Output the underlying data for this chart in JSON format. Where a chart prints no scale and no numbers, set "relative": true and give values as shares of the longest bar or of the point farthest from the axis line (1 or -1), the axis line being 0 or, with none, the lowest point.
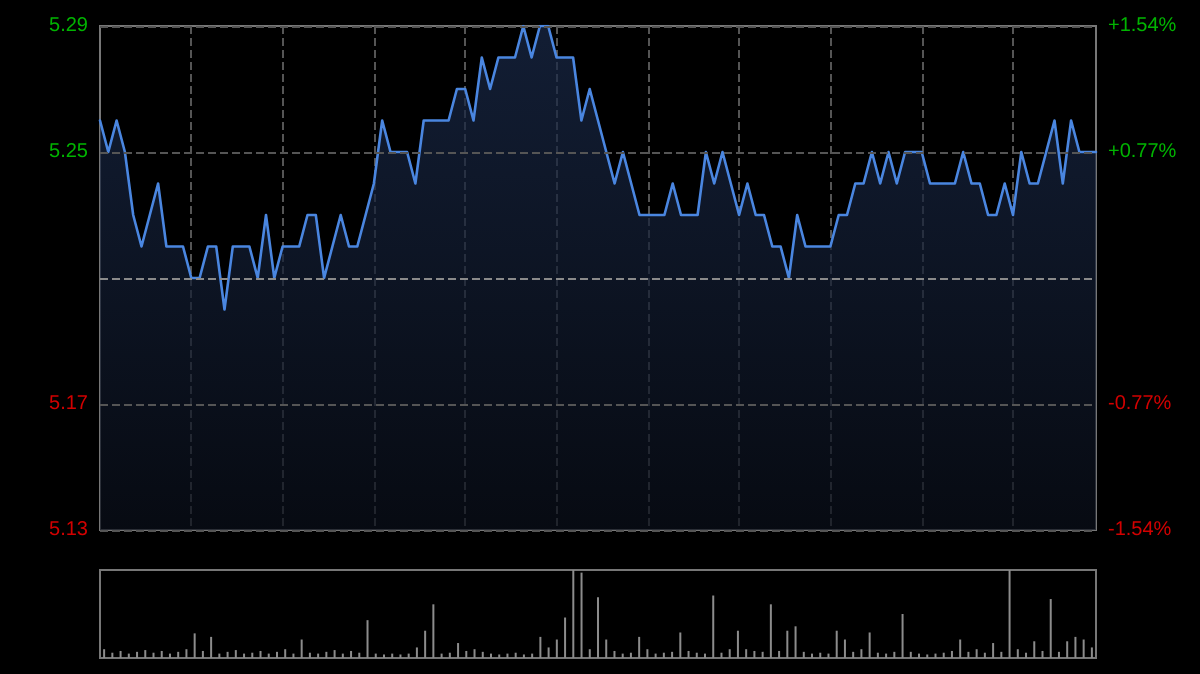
{
  "chart_data": [
    {
      "type": "area",
      "categories": [
        null,
        null,
        null,
        null,
        null,
        null,
        null,
        null,
        null,
        null,
        null,
        null,
        null,
        null,
        null,
        null,
        null,
        null,
        null,
        null,
        null,
        null,
        null,
        null,
        null,
        null,
        null,
        null,
        null,
        null,
        null,
        null,
        null,
        null,
        null,
        null,
        null,
        null,
        null,
        null,
        null,
        null,
        null,
        null,
        null,
        null,
        null,
        null,
        null,
        null,
        null,
        null,
        null,
        null,
        null,
        null,
        null,
        null,
        null,
        null,
        null,
        null,
        null,
        null,
        null,
        null,
        null,
        null,
        null,
        null,
        null,
        null,
        null,
        null,
        null,
        null,
        null,
        null,
        null,
        null,
        null,
        null,
        null,
        null,
        null,
        null,
        null,
        null,
        null,
        null,
        null,
        null,
        null,
        null,
        null,
        null,
        null,
        null,
        null,
        null,
        null,
        null,
        null,
        null,
        null,
        null,
        null,
        null,
        null,
        null,
        null,
        null,
        null,
        null,
        null,
        null,
        null,
        null,
        null,
        null,
        null
      ],
      "series": [
        {
          "color": "#4a86e0",
          "values": [
            5.26,
            5.25,
            5.26,
            5.25,
            5.23,
            5.22,
            5.23,
            5.24,
            5.22,
            5.22,
            5.22,
            5.21,
            5.21,
            5.22,
            5.22,
            5.2,
            5.22,
            5.22,
            5.22,
            5.21,
            5.23,
            5.21,
            5.22,
            5.22,
            5.22,
            5.23,
            5.23,
            5.21,
            5.22,
            5.23,
            5.22,
            5.22,
            5.23,
            5.24,
            5.26,
            5.25,
            5.25,
            5.25,
            5.24,
            5.26,
            5.26,
            5.26,
            5.26,
            5.27,
            5.27,
            5.26,
            5.28,
            5.27,
            5.28,
            5.28,
            5.28,
            5.29,
            5.28,
            5.29,
            5.29,
            5.28,
            5.28,
            5.28,
            5.26,
            5.27,
            5.26,
            5.25,
            5.24,
            5.25,
            5.24,
            5.23,
            5.23,
            5.23,
            5.23,
            5.24,
            5.23,
            5.23,
            5.23,
            5.25,
            5.24,
            5.25,
            5.24,
            5.23,
            5.24,
            5.23,
            5.23,
            5.22,
            5.22,
            5.21,
            5.23,
            5.22,
            5.22,
            5.22,
            5.22,
            5.23,
            5.23,
            5.24,
            5.24,
            5.25,
            5.24,
            5.25,
            5.24,
            5.25,
            5.25,
            5.25,
            5.24,
            5.24,
            5.24,
            5.24,
            5.25,
            5.24,
            5.24,
            5.23,
            5.23,
            5.24,
            5.23,
            5.25,
            5.24,
            5.24,
            5.25,
            5.26,
            5.24,
            5.26,
            5.25,
            5.25,
            5.25
          ]
        }
      ],
      "ylim": [
        5.13,
        5.29
      ],
      "yticks": [
        5.13,
        5.17,
        5.25,
        5.29
      ],
      "y2lim": [
        -1.54,
        1.54
      ],
      "y2ticks": [
        {
          "value": -1.54,
          "label": "-1.54%"
        },
        {
          "value": -0.77,
          "label": "-0.77%"
        },
        {
          "value": 0,
          "label": null
        },
        {
          "value": 0.77,
          "label": "+0.77%"
        },
        {
          "value": 1.54,
          "label": "+1.54%"
        }
      ],
      "ref_lines": [
        {
          "axis": "y",
          "value": 5.21,
          "line_style": "dashed",
          "color": "#8a8a8a"
        }
      ],
      "grid": true,
      "marker": "none",
      "line_style": "solid"
    },
    {
      "type": "bar",
      "relative": true,
      "categories": [
        null,
        null,
        null,
        null,
        null,
        null,
        null,
        null,
        null,
        null,
        null,
        null,
        null,
        null,
        null,
        null,
        null,
        null,
        null,
        null,
        null,
        null,
        null,
        null,
        null,
        null,
        null,
        null,
        null,
        null,
        null,
        null,
        null,
        null,
        null,
        null,
        null,
        null,
        null,
        null,
        null,
        null,
        null,
        null,
        null,
        null,
        null,
        null,
        null,
        null,
        null,
        null,
        null,
        null,
        null,
        null,
        null,
        null,
        null,
        null,
        null,
        null,
        null,
        null,
        null,
        null,
        null,
        null,
        null,
        null,
        null,
        null,
        null,
        null,
        null,
        null,
        null,
        null,
        null,
        null,
        null,
        null,
        null,
        null,
        null,
        null,
        null,
        null,
        null,
        null,
        null,
        null,
        null,
        null,
        null,
        null,
        null,
        null,
        null,
        null,
        null,
        null,
        null,
        null,
        null,
        null,
        null,
        null,
        null,
        null,
        null,
        null,
        null,
        null,
        null,
        null,
        null,
        null,
        null,
        null,
        null
      ],
      "series": [
        {
          "color": "#8c8c8c",
          "values": [
            0.1,
            0.06,
            0.08,
            0.05,
            0.07,
            0.09,
            0.06,
            0.08,
            0.05,
            0.07,
            0.1,
            0.28,
            0.08,
            0.24,
            0.05,
            0.07,
            0.09,
            0.05,
            0.06,
            0.08,
            0.05,
            0.07,
            0.1,
            0.05,
            0.21,
            0.06,
            0.05,
            0.07,
            0.09,
            0.05,
            0.08,
            0.06,
            0.43,
            0.05,
            0.04,
            0.05,
            0.04,
            0.05,
            0.12,
            0.31,
            0.61,
            0.05,
            0.06,
            0.17,
            0.08,
            0.1,
            0.07,
            0.05,
            0.04,
            0.05,
            0.06,
            0.04,
            0.05,
            0.24,
            0.12,
            0.21,
            0.46,
            1,
            0.97,
            0.1,
            0.69,
            0.21,
            0.08,
            0.05,
            0.06,
            0.24,
            0.1,
            0.05,
            0.06,
            0.07,
            0.29,
            0.08,
            0.06,
            0.05,
            0.71,
            0.06,
            0.1,
            0.31,
            0.1,
            0.08,
            0.07,
            0.61,
            0.08,
            0.31,
            0.36,
            0.07,
            0.05,
            0.06,
            0.05,
            0.31,
            0.21,
            0.07,
            0.1,
            0.29,
            0.06,
            0.05,
            0.07,
            0.5,
            0.07,
            0.05,
            0.04,
            0.05,
            0.06,
            0.08,
            0.21,
            0.07,
            0.1,
            0.06,
            0.17,
            0.07,
            1,
            0.1,
            0.06,
            0.19,
            0.08,
            0.67,
            0.07,
            0.19,
            0.24,
            0.21,
            0.12
          ]
        }
      ]
    }
  ]
}
